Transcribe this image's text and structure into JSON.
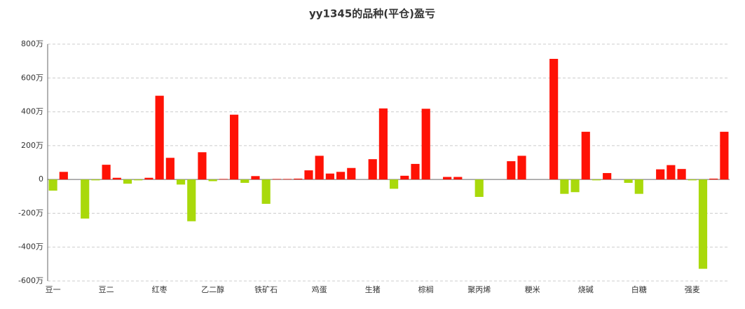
{
  "chart_data": {
    "type": "bar",
    "title": "yy1345的品种(平仓)盈亏",
    "categories": [
      "豆一",
      null,
      null,
      null,
      null,
      "豆二",
      null,
      null,
      null,
      null,
      "红枣",
      null,
      null,
      null,
      null,
      "乙二醇",
      null,
      null,
      null,
      null,
      "铁矿石",
      null,
      null,
      null,
      null,
      "鸡蛋",
      null,
      null,
      null,
      null,
      "生猪",
      null,
      null,
      null,
      null,
      "棕榈",
      null,
      null,
      null,
      null,
      "聚丙烯",
      null,
      null,
      null,
      null,
      "粳米",
      null,
      null,
      null,
      null,
      "烧碱",
      null,
      null,
      null,
      null,
      "白糖",
      null,
      null,
      null,
      null,
      "强麦",
      null,
      null,
      null
    ],
    "values": [
      -66,
      45,
      0,
      -231,
      -5,
      87,
      10,
      -25,
      -5,
      10,
      495,
      128,
      -30,
      -247,
      161,
      -10,
      3,
      383,
      -20,
      20,
      -144,
      3,
      3,
      5,
      54,
      140,
      35,
      45,
      68,
      0,
      120,
      420,
      -55,
      22,
      92,
      418,
      0,
      15,
      15,
      0,
      -103,
      0,
      0,
      108,
      140,
      0,
      0,
      713,
      -85,
      -75,
      282,
      -5,
      38,
      0,
      -20,
      -85,
      0,
      60,
      85,
      62,
      -5,
      -528,
      5,
      282
    ],
    "positive_color": "#ff1205",
    "negative_color": "#a9d90b",
    "ylim": [
      -600,
      800
    ],
    "yticks": [
      {
        "value": -600,
        "label": "-600万"
      },
      {
        "value": -400,
        "label": "-400万"
      },
      {
        "value": -200,
        "label": "-200万"
      },
      0,
      {
        "value": 200,
        "label": "200万"
      },
      {
        "value": 400,
        "label": "400万"
      },
      {
        "value": 600,
        "label": "600万"
      },
      {
        "value": 800,
        "label": "800万"
      }
    ],
    "grid": true
  }
}
